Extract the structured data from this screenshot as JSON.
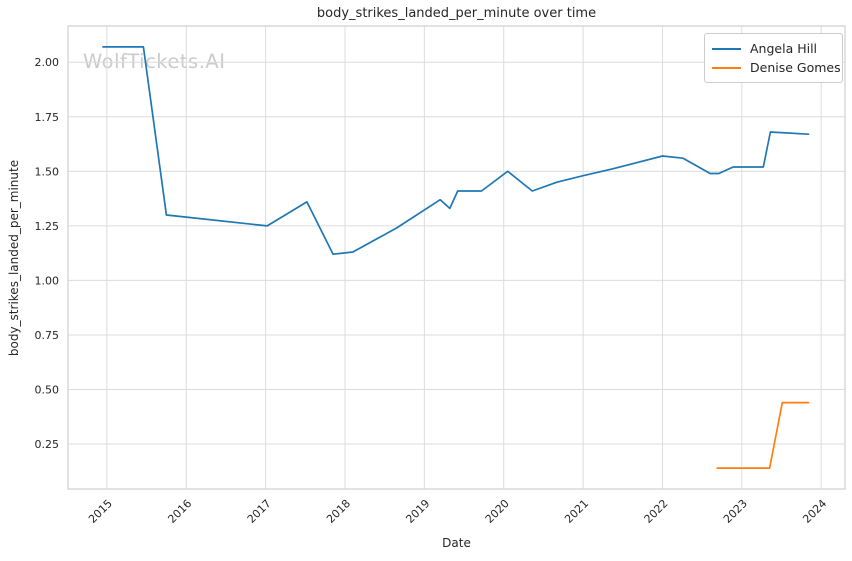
{
  "chart_data": {
    "type": "line",
    "title": "body_strikes_landed_per_minute over time",
    "xlabel": "Date",
    "ylabel": "body_strikes_landed_per_minute",
    "watermark": "WolfTickets.AI",
    "grid": true,
    "legend_position": "upper right",
    "xlim": [
      2014.51,
      2024.3
    ],
    "ylim": [
      0.044,
      2.166
    ],
    "xticks": [
      {
        "value": 2015,
        "label": "2015"
      },
      {
        "value": 2016,
        "label": "2016"
      },
      {
        "value": 2017,
        "label": "2017"
      },
      {
        "value": 2018,
        "label": "2018"
      },
      {
        "value": 2019,
        "label": "2019"
      },
      {
        "value": 2020,
        "label": "2020"
      },
      {
        "value": 2021,
        "label": "2021"
      },
      {
        "value": 2022,
        "label": "2022"
      },
      {
        "value": 2023,
        "label": "2023"
      },
      {
        "value": 2024,
        "label": "2024"
      }
    ],
    "yticks": [
      {
        "value": 0.25,
        "label": "0.25"
      },
      {
        "value": 0.5,
        "label": "0.50"
      },
      {
        "value": 0.75,
        "label": "0.75"
      },
      {
        "value": 1.0,
        "label": "1.00"
      },
      {
        "value": 1.25,
        "label": "1.25"
      },
      {
        "value": 1.5,
        "label": "1.50"
      },
      {
        "value": 1.75,
        "label": "1.75"
      },
      {
        "value": 2.0,
        "label": "2.00"
      }
    ],
    "series": [
      {
        "name": "Angela Hill",
        "color": "#1f77b4",
        "points": [
          [
            2014.95,
            2.07
          ],
          [
            2015.46,
            2.07
          ],
          [
            2015.75,
            1.3
          ],
          [
            2016.0,
            1.29
          ],
          [
            2017.02,
            1.25
          ],
          [
            2017.52,
            1.36
          ],
          [
            2017.85,
            1.12
          ],
          [
            2018.1,
            1.13
          ],
          [
            2018.65,
            1.24
          ],
          [
            2019.2,
            1.37
          ],
          [
            2019.32,
            1.33
          ],
          [
            2019.42,
            1.41
          ],
          [
            2019.72,
            1.41
          ],
          [
            2020.05,
            1.5
          ],
          [
            2020.36,
            1.41
          ],
          [
            2020.67,
            1.45
          ],
          [
            2021.0,
            1.48
          ],
          [
            2021.36,
            1.51
          ],
          [
            2021.68,
            1.54
          ],
          [
            2022.0,
            1.57
          ],
          [
            2022.26,
            1.56
          ],
          [
            2022.6,
            1.49
          ],
          [
            2022.71,
            1.49
          ],
          [
            2022.89,
            1.52
          ],
          [
            2023.27,
            1.52
          ],
          [
            2023.36,
            1.68
          ],
          [
            2023.84,
            1.67
          ]
        ]
      },
      {
        "name": "Denise Gomes",
        "color": "#ff7f0e",
        "points": [
          [
            2022.69,
            0.14
          ],
          [
            2023.35,
            0.14
          ],
          [
            2023.51,
            0.44
          ],
          [
            2023.84,
            0.44
          ]
        ]
      }
    ]
  }
}
